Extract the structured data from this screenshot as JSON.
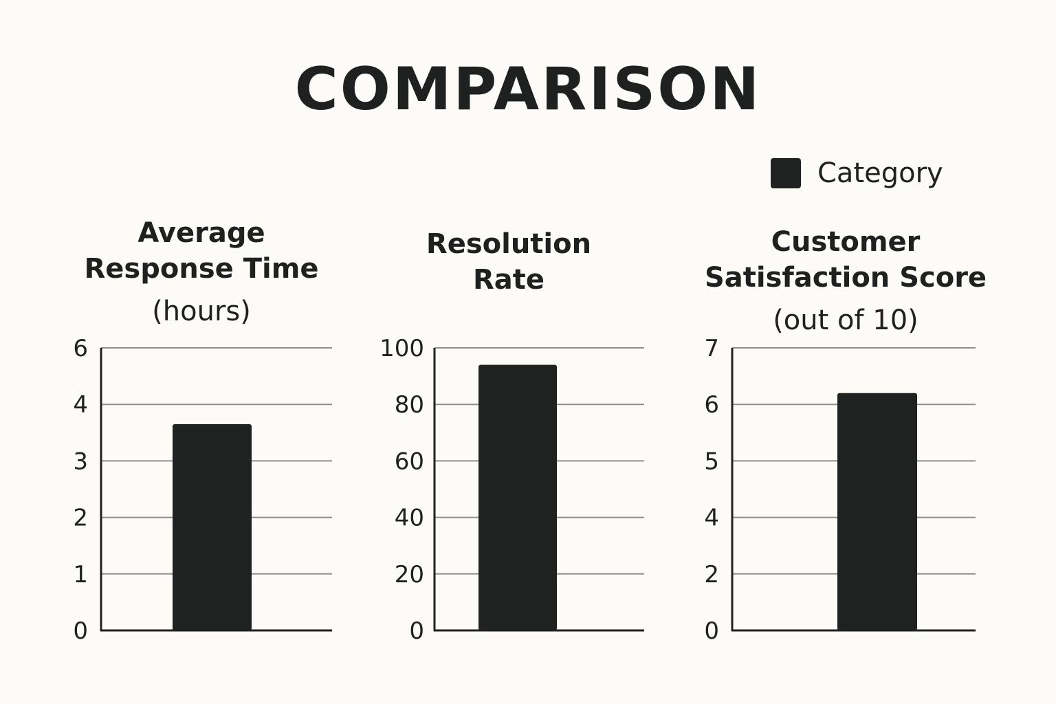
{
  "title": "COMPARISON",
  "legend": {
    "label": "Category",
    "color": "#202221"
  },
  "chart_data": [
    {
      "type": "bar",
      "title_line1": "Average",
      "title_line2": "Response Time",
      "unit": "(hours)",
      "series": [
        {
          "name": "Category",
          "values": [
            3.65
          ]
        }
      ],
      "yticks": [
        0,
        1,
        2,
        3,
        4,
        6
      ],
      "grid": true
    },
    {
      "type": "bar",
      "title_line1": "Resolution",
      "title_line2": "Rate",
      "unit": "",
      "series": [
        {
          "name": "Category",
          "values": [
            94
          ]
        }
      ],
      "yticks": [
        0,
        20,
        40,
        60,
        80,
        100
      ],
      "grid": true
    },
    {
      "type": "bar",
      "title_line1": "Customer",
      "title_line2": "Satisfaction Score",
      "unit": "(out of 10)",
      "series": [
        {
          "name": "Category",
          "values": [
            6.2
          ]
        }
      ],
      "yticks": [
        0,
        2,
        4,
        5,
        6,
        7
      ],
      "grid": true
    }
  ]
}
